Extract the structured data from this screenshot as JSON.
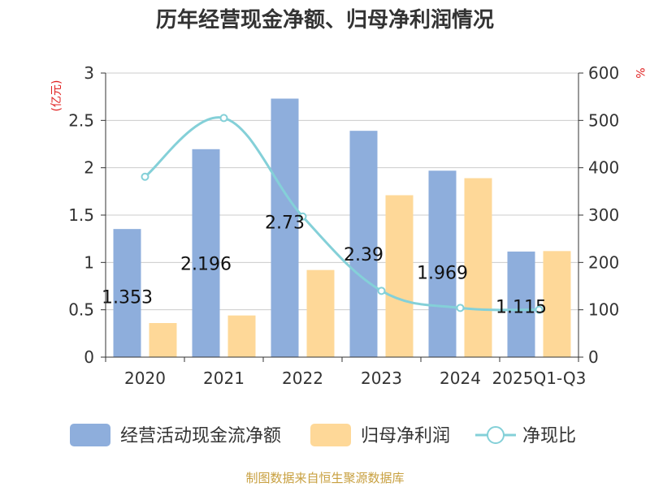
{
  "chart_data": {
    "type": "bar",
    "title": "历年经营现金净额、归母净利润情况",
    "categories": [
      "2020",
      "2021",
      "2022",
      "2023",
      "2024",
      "2025Q1-Q3"
    ],
    "series": [
      {
        "name": "经营活动现金流净额",
        "kind": "bar",
        "axis": "left",
        "color": "#8eaedc",
        "values": [
          1.353,
          2.196,
          2.73,
          2.39,
          1.969,
          1.115
        ],
        "labels": [
          "1.353",
          "2.196",
          "2.73",
          "2.39",
          "1.969",
          "1.115"
        ]
      },
      {
        "name": "归母净利润",
        "kind": "bar",
        "axis": "left",
        "color": "#fed898",
        "values": [
          0.36,
          0.44,
          0.92,
          1.71,
          1.89,
          1.12
        ]
      },
      {
        "name": "净现比",
        "kind": "line",
        "axis": "right",
        "color": "#84d0d8",
        "values": [
          381,
          505,
          297,
          140,
          104,
          100
        ]
      }
    ],
    "left_axis": {
      "unit": "(亿元)",
      "ylim": [
        0,
        3
      ],
      "ticks": [
        "0",
        "0.5",
        "1",
        "1.5",
        "2",
        "2.5",
        "3"
      ]
    },
    "right_axis": {
      "unit": "%",
      "ylim": [
        0,
        600
      ],
      "ticks": [
        "0",
        "100",
        "200",
        "300",
        "400",
        "500",
        "600"
      ]
    },
    "grid": true,
    "legend_position": "bottom"
  },
  "footer": {
    "source": "制图数据来自恒生聚源数据库"
  }
}
